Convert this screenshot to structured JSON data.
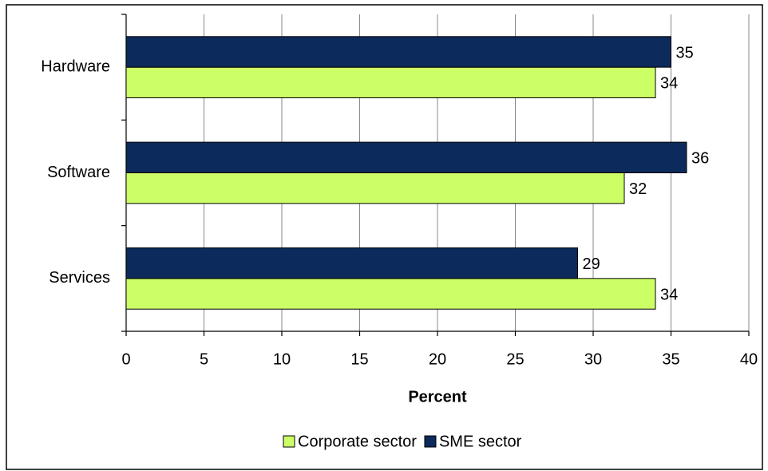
{
  "chart_data": {
    "type": "hbar",
    "categories": [
      "Hardware",
      "Software",
      "Services"
    ],
    "series": [
      {
        "name": "Corporate sector",
        "color": "#ccff66",
        "values": [
          34,
          32,
          34
        ]
      },
      {
        "name": "SME sector",
        "color": "#0c2a5b",
        "values": [
          35,
          36,
          29
        ]
      }
    ],
    "xlabel": "Percent",
    "xlim": [
      0,
      40
    ],
    "xticks": [
      0,
      5,
      10,
      15,
      20,
      25,
      30,
      35,
      40
    ],
    "grid": true,
    "legend": "bottom"
  }
}
